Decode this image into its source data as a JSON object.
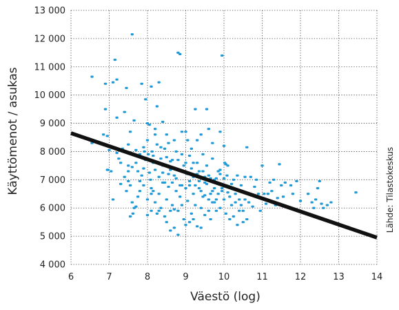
{
  "chart_data": {
    "type": "scatter",
    "xlabel": "Väestö (log)",
    "ylabel": "Käyttömenot / asukas",
    "source": "Lähde: Tilastokeskus",
    "xlim": [
      6,
      14
    ],
    "ylim": [
      4000,
      13000
    ],
    "x_ticks": [
      6,
      7,
      8,
      9,
      10,
      11,
      12,
      13,
      14
    ],
    "x_tick_labels": [
      "6",
      "7",
      "8",
      "9",
      "10",
      "11",
      "12",
      "13",
      "14"
    ],
    "y_ticks": [
      4000,
      5000,
      6000,
      7000,
      8000,
      9000,
      10000,
      11000,
      12000,
      13000
    ],
    "y_tick_labels": [
      "4 000",
      "5 000",
      "6 000",
      "7 000",
      "8 000",
      "9 000",
      "10 000",
      "11 000",
      "12 000",
      "13 000"
    ],
    "grid": "dotted",
    "point_color": "#1f9ad6",
    "trend_color": "#111111",
    "trendline": {
      "x": [
        6,
        14
      ],
      "y": [
        8650,
        4950
      ]
    },
    "points": [
      [
        6.55,
        10650
      ],
      [
        6.55,
        8300
      ],
      [
        6.85,
        8600
      ],
      [
        6.9,
        10400
      ],
      [
        6.9,
        9500
      ],
      [
        6.95,
        8550
      ],
      [
        7.0,
        8050
      ],
      [
        6.97,
        7350
      ],
      [
        7.05,
        7300
      ],
      [
        7.1,
        10450
      ],
      [
        7.15,
        11250
      ],
      [
        7.2,
        10550
      ],
      [
        7.2,
        9200
      ],
      [
        7.25,
        7750
      ],
      [
        7.3,
        6850
      ],
      [
        7.35,
        8100
      ],
      [
        7.4,
        9400
      ],
      [
        7.45,
        10250
      ],
      [
        7.5,
        8250
      ],
      [
        7.5,
        7500
      ],
      [
        7.55,
        8700
      ],
      [
        7.6,
        12150
      ],
      [
        7.6,
        7450
      ],
      [
        7.65,
        9100
      ],
      [
        7.7,
        8050
      ],
      [
        7.75,
        7300
      ],
      [
        7.8,
        6950
      ],
      [
        7.85,
        10400
      ],
      [
        7.9,
        8150
      ],
      [
        7.92,
        8000
      ],
      [
        7.95,
        9850
      ],
      [
        8.0,
        9000
      ],
      [
        8.02,
        7900
      ],
      [
        8.05,
        8950
      ],
      [
        8.08,
        7000
      ],
      [
        8.1,
        10300
      ],
      [
        8.12,
        8000
      ],
      [
        8.15,
        7600
      ],
      [
        8.2,
        8600
      ],
      [
        8.25,
        9600
      ],
      [
        8.3,
        10450
      ],
      [
        8.35,
        8150
      ],
      [
        8.4,
        7500
      ],
      [
        8.45,
        6900
      ],
      [
        8.5,
        8600
      ],
      [
        8.55,
        7200
      ],
      [
        8.6,
        7650
      ],
      [
        8.65,
        7700
      ],
      [
        8.7,
        8400
      ],
      [
        8.75,
        7050
      ],
      [
        8.8,
        11500
      ],
      [
        8.85,
        11450
      ],
      [
        8.9,
        8700
      ],
      [
        8.95,
        7500
      ],
      [
        9.0,
        8700
      ],
      [
        9.05,
        8400
      ],
      [
        9.1,
        7850
      ],
      [
        9.15,
        8100
      ],
      [
        9.2,
        7600
      ],
      [
        9.25,
        9500
      ],
      [
        9.3,
        7200
      ],
      [
        9.35,
        6950
      ],
      [
        9.4,
        8600
      ],
      [
        9.45,
        7300
      ],
      [
        9.5,
        7100
      ],
      [
        9.55,
        9500
      ],
      [
        9.6,
        8800
      ],
      [
        9.65,
        7050
      ],
      [
        9.7,
        8300
      ],
      [
        9.75,
        7000
      ],
      [
        9.8,
        6900
      ],
      [
        9.85,
        7300
      ],
      [
        9.9,
        7200
      ],
      [
        9.95,
        11400
      ],
      [
        10.0,
        8200
      ],
      [
        10.02,
        7600
      ],
      [
        10.05,
        7550
      ],
      [
        10.08,
        7150
      ],
      [
        10.1,
        7500
      ],
      [
        10.15,
        6400
      ],
      [
        10.2,
        6850
      ],
      [
        10.25,
        7000
      ],
      [
        10.3,
        6200
      ],
      [
        10.35,
        7150
      ],
      [
        10.4,
        6300
      ],
      [
        10.45,
        6100
      ],
      [
        10.5,
        5900
      ],
      [
        10.55,
        7100
      ],
      [
        10.6,
        8150
      ],
      [
        10.65,
        6200
      ],
      [
        10.7,
        7100
      ],
      [
        10.75,
        6050
      ],
      [
        10.8,
        6750
      ],
      [
        10.85,
        7000
      ],
      [
        10.9,
        6500
      ],
      [
        10.95,
        5900
      ],
      [
        11.0,
        7500
      ],
      [
        11.05,
        6500
      ],
      [
        11.1,
        6150
      ],
      [
        11.15,
        6500
      ],
      [
        11.2,
        6900
      ],
      [
        11.25,
        6600
      ],
      [
        11.3,
        7000
      ],
      [
        11.35,
        6100
      ],
      [
        11.4,
        6350
      ],
      [
        11.45,
        7550
      ],
      [
        11.5,
        6800
      ],
      [
        11.55,
        6400
      ],
      [
        11.6,
        6900
      ],
      [
        11.65,
        6050
      ],
      [
        11.75,
        6800
      ],
      [
        11.8,
        6500
      ],
      [
        11.9,
        6950
      ],
      [
        12.0,
        6250
      ],
      [
        12.1,
        5850
      ],
      [
        12.2,
        6500
      ],
      [
        12.3,
        6200
      ],
      [
        12.35,
        6000
      ],
      [
        12.4,
        6300
      ],
      [
        12.45,
        6700
      ],
      [
        12.5,
        6950
      ],
      [
        12.55,
        6150
      ],
      [
        12.6,
        6000
      ],
      [
        12.7,
        6100
      ],
      [
        12.8,
        6200
      ],
      [
        13.45,
        6550
      ],
      [
        7.9,
        6800
      ],
      [
        8.0,
        6300
      ],
      [
        8.1,
        5900
      ],
      [
        8.15,
        6600
      ],
      [
        8.2,
        6200
      ],
      [
        8.25,
        5800
      ],
      [
        8.3,
        6500
      ],
      [
        8.35,
        6000
      ],
      [
        8.4,
        6900
      ],
      [
        8.45,
        5700
      ],
      [
        8.5,
        6300
      ],
      [
        8.55,
        6750
      ],
      [
        8.6,
        5900
      ],
      [
        8.65,
        6100
      ],
      [
        8.7,
        5300
      ],
      [
        8.75,
        6600
      ],
      [
        8.8,
        5900
      ],
      [
        8.85,
        6400
      ],
      [
        8.9,
        6100
      ],
      [
        8.95,
        5600
      ],
      [
        9.0,
        6700
      ],
      [
        9.05,
        6250
      ],
      [
        9.1,
        6950
      ],
      [
        9.15,
        5800
      ],
      [
        9.2,
        6500
      ],
      [
        9.25,
        6100
      ],
      [
        9.3,
        5350
      ],
      [
        9.35,
        6700
      ],
      [
        9.4,
        6000
      ],
      [
        9.45,
        6400
      ],
      [
        9.5,
        5750
      ],
      [
        9.55,
        6850
      ],
      [
        9.6,
        6300
      ],
      [
        9.65,
        5600
      ],
      [
        9.7,
        6600
      ],
      [
        9.75,
        6200
      ],
      [
        9.8,
        5900
      ],
      [
        9.85,
        6500
      ],
      [
        9.9,
        6000
      ],
      [
        9.95,
        6700
      ],
      [
        10.0,
        6300
      ],
      [
        10.05,
        5800
      ],
      [
        10.1,
        6550
      ],
      [
        10.15,
        5600
      ],
      [
        10.2,
        6100
      ],
      [
        10.25,
        5700
      ],
      [
        10.3,
        6500
      ],
      [
        10.35,
        5400
      ],
      [
        10.4,
        5900
      ],
      [
        10.45,
        6800
      ],
      [
        10.5,
        5500
      ],
      [
        10.55,
        6300
      ],
      [
        10.6,
        5600
      ],
      [
        7.5,
        7300
      ],
      [
        7.55,
        6800
      ],
      [
        7.6,
        6200
      ],
      [
        7.62,
        5800
      ],
      [
        7.65,
        6000
      ],
      [
        7.7,
        7600
      ],
      [
        7.75,
        6400
      ],
      [
        7.8,
        7900
      ],
      [
        7.85,
        7150
      ],
      [
        7.9,
        7400
      ],
      [
        7.95,
        7700
      ],
      [
        8.0,
        8400
      ],
      [
        8.05,
        7250
      ],
      [
        8.1,
        6700
      ],
      [
        8.15,
        7850
      ],
      [
        8.2,
        7350
      ],
      [
        8.25,
        8250
      ],
      [
        8.3,
        7100
      ],
      [
        8.35,
        7750
      ],
      [
        8.4,
        7250
      ],
      [
        8.45,
        8100
      ],
      [
        8.5,
        7800
      ],
      [
        8.55,
        8300
      ],
      [
        8.6,
        7350
      ],
      [
        8.65,
        6900
      ],
      [
        8.7,
        7150
      ],
      [
        8.75,
        8000
      ],
      [
        8.8,
        7700
      ],
      [
        8.85,
        6800
      ],
      [
        8.9,
        7900
      ],
      [
        8.95,
        7300
      ],
      [
        9.0,
        7600
      ],
      [
        9.05,
        7200
      ],
      [
        9.1,
        6800
      ],
      [
        9.15,
        7400
      ],
      [
        9.2,
        7100
      ],
      [
        9.25,
        6800
      ],
      [
        9.3,
        7600
      ],
      [
        9.35,
        7300
      ],
      [
        9.4,
        6600
      ],
      [
        9.45,
        7900
      ],
      [
        9.5,
        6900
      ],
      [
        9.55,
        7500
      ],
      [
        9.6,
        7150
      ],
      [
        9.65,
        6500
      ],
      [
        9.7,
        7750
      ],
      [
        9.75,
        6700
      ],
      [
        9.8,
        7050
      ],
      [
        9.85,
        6850
      ],
      [
        9.9,
        7350
      ],
      [
        9.95,
        6600
      ],
      [
        10.0,
        7050
      ],
      [
        6.95,
        7350
      ],
      [
        7.1,
        6300
      ],
      [
        7.2,
        7950
      ],
      [
        7.3,
        7600
      ],
      [
        7.4,
        7100
      ],
      [
        7.45,
        6600
      ],
      [
        7.5,
        6950
      ],
      [
        7.55,
        5700
      ],
      [
        7.7,
        6050
      ],
      [
        7.8,
        6600
      ],
      [
        8.0,
        5750
      ],
      [
        8.1,
        6500
      ],
      [
        8.2,
        8800
      ],
      [
        8.3,
        5900
      ],
      [
        8.4,
        9050
      ],
      [
        8.5,
        5500
      ],
      [
        8.6,
        5200
      ],
      [
        8.7,
        5950
      ],
      [
        8.8,
        5050
      ],
      [
        8.9,
        6800
      ],
      [
        9.0,
        5400
      ],
      [
        9.1,
        5500
      ],
      [
        9.2,
        5600
      ],
      [
        9.3,
        8400
      ],
      [
        9.4,
        5300
      ],
      [
        9.5,
        6450
      ],
      [
        9.6,
        5900
      ],
      [
        9.7,
        6200
      ],
      [
        9.8,
        6300
      ],
      [
        9.9,
        8700
      ]
    ]
  }
}
